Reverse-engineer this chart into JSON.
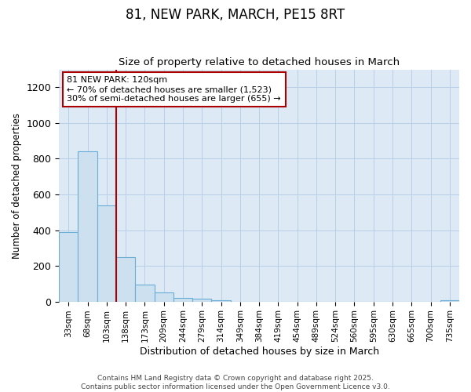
{
  "title": "81, NEW PARK, MARCH, PE15 8RT",
  "subtitle": "Size of property relative to detached houses in March",
  "xlabel": "Distribution of detached houses by size in March",
  "ylabel": "Number of detached properties",
  "categories": [
    "33sqm",
    "68sqm",
    "103sqm",
    "138sqm",
    "173sqm",
    "209sqm",
    "244sqm",
    "279sqm",
    "314sqm",
    "349sqm",
    "384sqm",
    "419sqm",
    "454sqm",
    "489sqm",
    "524sqm",
    "560sqm",
    "595sqm",
    "630sqm",
    "665sqm",
    "700sqm",
    "735sqm"
  ],
  "values": [
    390,
    840,
    540,
    248,
    97,
    52,
    20,
    14,
    8,
    0,
    0,
    0,
    0,
    0,
    0,
    0,
    0,
    0,
    0,
    0,
    8
  ],
  "bar_color": "#cce0f0",
  "bar_edge_color": "#6aaed6",
  "vline_color": "#aa0000",
  "vline_position": 2.5,
  "annotation_title": "81 NEW PARK: 120sqm",
  "annotation_line1": "← 70% of detached houses are smaller (1,523)",
  "annotation_line2": "30% of semi-detached houses are larger (655) →",
  "annotation_box_color": "#ffffff",
  "annotation_box_edge": "#aa0000",
  "ylim": [
    0,
    1300
  ],
  "yticks": [
    0,
    200,
    400,
    600,
    800,
    1000,
    1200
  ],
  "bg_color": "#dde9f5",
  "fig_bg_color": "#ffffff",
  "footer1": "Contains HM Land Registry data © Crown copyright and database right 2025.",
  "footer2": "Contains public sector information licensed under the Open Government Licence v3.0."
}
